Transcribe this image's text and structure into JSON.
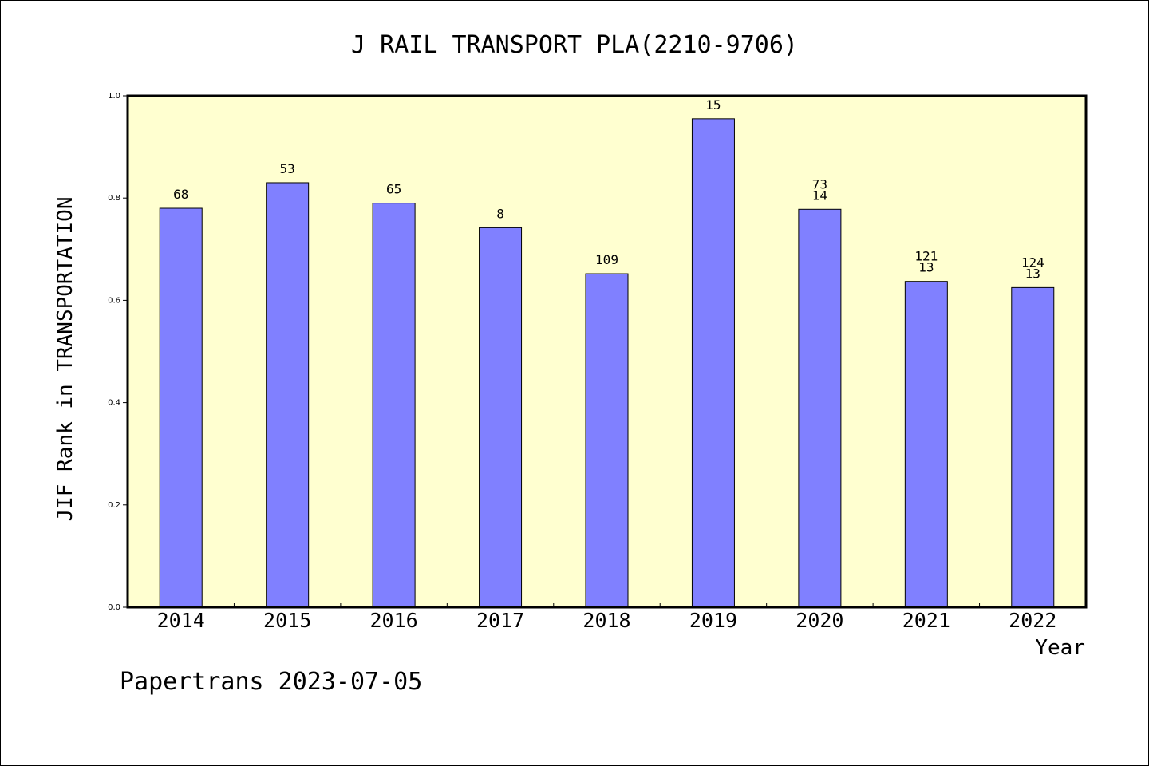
{
  "chart_data": {
    "type": "bar",
    "title": "J RAIL TRANSPORT PLA(2210-9706)",
    "xlabel": "Year",
    "ylabel": "JIF Rank in TRANSPORTATION",
    "categories": [
      "2014",
      "2015",
      "2016",
      "2017",
      "2018",
      "2019",
      "2020",
      "2021",
      "2022"
    ],
    "values": [
      0.78,
      0.83,
      0.79,
      0.742,
      0.652,
      0.955,
      0.778,
      0.637,
      0.625
    ],
    "bar_labels": [
      [
        "68"
      ],
      [
        "53"
      ],
      [
        "65"
      ],
      [
        "8"
      ],
      [
        "109"
      ],
      [
        "15"
      ],
      [
        "73",
        "14"
      ],
      [
        "121",
        "13"
      ],
      [
        "124",
        "13"
      ]
    ],
    "ylim": [
      0,
      1.0
    ],
    "yticks": [
      "0.0",
      "0.2",
      "0.4",
      "0.6",
      "0.8",
      "1.0"
    ],
    "grid": false,
    "legend": "none",
    "colors": {
      "bar": "#8080ff",
      "plot_background": "#ffffd0",
      "axis": "#000000"
    }
  },
  "footer": {
    "watermark": "Papertrans 2023-07-05"
  }
}
